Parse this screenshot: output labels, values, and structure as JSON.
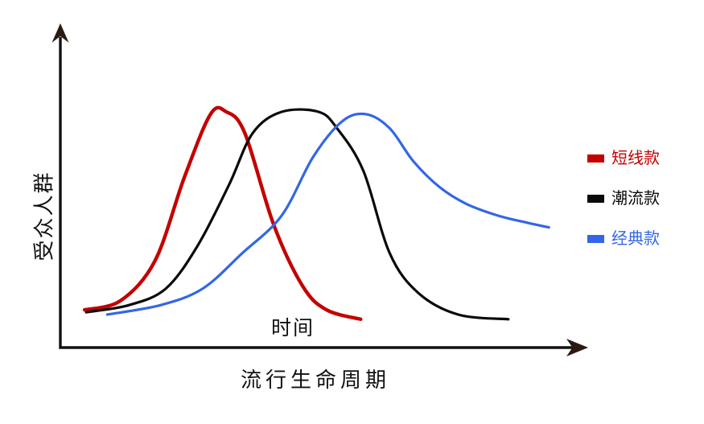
{
  "chart_data": {
    "type": "line",
    "title": "",
    "xlabel": "流行生命周期",
    "ylabel": "受众人群",
    "annotation": "时间",
    "xlim": [
      0,
      100
    ],
    "ylim": [
      0,
      100
    ],
    "grid": false,
    "legend_position": "right",
    "axis_color": "#111111",
    "arrowhead_color": "#2b1a12",
    "series": [
      {
        "name": "短线款",
        "color": "#c40000",
        "stroke_width": 4.4,
        "points": [
          [
            4.6,
            16
          ],
          [
            11.5,
            20
          ],
          [
            18,
            37
          ],
          [
            23.5,
            72
          ],
          [
            28.5,
            99
          ],
          [
            31.5,
            100
          ],
          [
            35,
            91
          ],
          [
            40.5,
            52
          ],
          [
            46,
            26
          ],
          [
            50.5,
            16
          ],
          [
            57,
            12
          ]
        ]
      },
      {
        "name": "潮流款",
        "color": "#0a0a0a",
        "stroke_width": 3.2,
        "points": [
          [
            4.9,
            15
          ],
          [
            13,
            18
          ],
          [
            20,
            25
          ],
          [
            26,
            43
          ],
          [
            32,
            69
          ],
          [
            36.5,
            91
          ],
          [
            42,
            100
          ],
          [
            49,
            100
          ],
          [
            52.5,
            93
          ],
          [
            57.5,
            75
          ],
          [
            62.5,
            40
          ],
          [
            68,
            23
          ],
          [
            75.5,
            14
          ],
          [
            85,
            12
          ]
        ]
      },
      {
        "name": "经典款",
        "color": "#3366e6",
        "stroke_width": 3.2,
        "points": [
          [
            8.9,
            14
          ],
          [
            19,
            18
          ],
          [
            27,
            25
          ],
          [
            34.5,
            40
          ],
          [
            42,
            56
          ],
          [
            48,
            81
          ],
          [
            53.5,
            96
          ],
          [
            58,
            99
          ],
          [
            62.5,
            93
          ],
          [
            67,
            79
          ],
          [
            72,
            68
          ],
          [
            77,
            61
          ],
          [
            83,
            56
          ],
          [
            88.5,
            53
          ],
          [
            92.7,
            51
          ]
        ]
      }
    ]
  }
}
